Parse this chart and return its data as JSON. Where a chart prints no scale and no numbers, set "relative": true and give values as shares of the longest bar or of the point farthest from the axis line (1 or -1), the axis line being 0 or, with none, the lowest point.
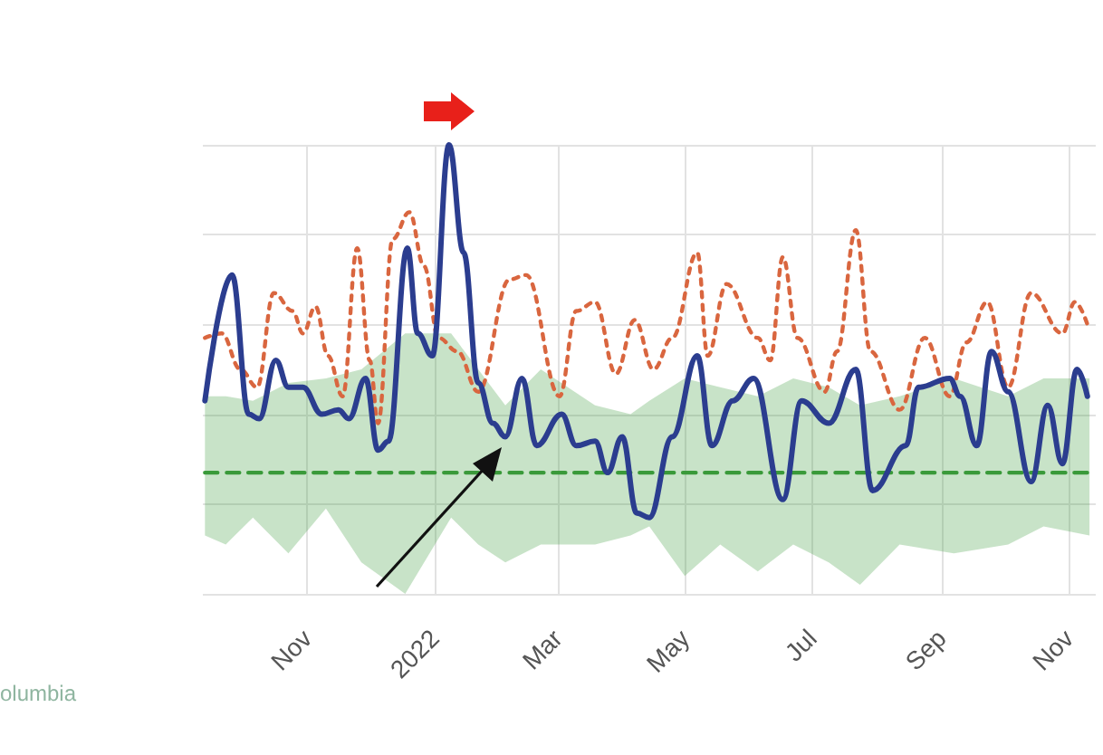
{
  "chart_data": {
    "type": "line",
    "relative": true,
    "grid": true,
    "marker": "none",
    "xlim": [
      "2021-09-12",
      "2022-11-14"
    ],
    "xticks": [
      {
        "value": "2021-11-01",
        "label": "Nov"
      },
      {
        "value": "2022-01-01",
        "label": "2022"
      },
      {
        "value": "2022-03-01",
        "label": "Mar"
      },
      {
        "value": "2022-05-01",
        "label": "May"
      },
      {
        "value": "2022-07-01",
        "label": "Jul"
      },
      {
        "value": "2022-09-01",
        "label": "Sep"
      },
      {
        "value": "2022-11-01",
        "label": "Nov"
      }
    ],
    "annotations": [
      "olumbia"
    ],
    "series": [
      {
        "color": "#3a9a3a",
        "line_style": "dashed",
        "x": [
          "2021-09-13",
          "2021-09-23",
          "2021-10-06",
          "2021-10-23",
          "2021-11-10",
          "2021-11-27",
          "2021-12-18",
          "2022-01-09",
          "2022-01-22",
          "2022-02-04",
          "2022-02-21",
          "2022-03-19",
          "2022-04-05",
          "2022-04-14",
          "2022-05-01",
          "2022-05-18",
          "2022-06-05",
          "2022-06-22",
          "2022-07-09",
          "2022-07-24",
          "2022-08-12",
          "2022-09-07",
          "2022-10-03",
          "2022-10-20",
          "2022-11-11"
        ],
        "values": [
          0.27,
          0.27,
          0.27,
          0.27,
          0.27,
          0.27,
          0.27,
          0.27,
          0.27,
          0.27,
          0.27,
          0.27,
          0.27,
          0.27,
          0.27,
          0.27,
          0.27,
          0.27,
          0.27,
          0.27,
          0.27,
          0.27,
          0.27,
          0.27,
          0.27
        ],
        "upper": [
          0.44,
          0.44,
          0.43,
          0.47,
          0.48,
          0.5,
          0.58,
          0.58,
          0.5,
          0.42,
          0.5,
          0.42,
          0.4,
          0.43,
          0.48,
          0.46,
          0.44,
          0.48,
          0.46,
          0.42,
          0.44,
          0.48,
          0.44,
          0.48,
          0.48
        ],
        "lower": [
          0.13,
          0.11,
          0.17,
          0.09,
          0.19,
          0.07,
          0,
          0.17,
          0.11,
          0.07,
          0.11,
          0.11,
          0.13,
          0.15,
          0.04,
          0.11,
          0.05,
          0.11,
          0.07,
          0.02,
          0.11,
          0.09,
          0.11,
          0.15,
          0.13
        ]
      },
      {
        "color": "#d9663f",
        "line_style": "dotted",
        "x": [
          "2021-09-13",
          "2021-09-21",
          "2021-09-30",
          "2021-10-08",
          "2021-10-16",
          "2021-10-25",
          "2021-10-30",
          "2021-11-05",
          "2021-11-11",
          "2021-11-18",
          "2021-11-25",
          "2021-12-01",
          "2021-12-05",
          "2021-12-12",
          "2021-12-20",
          "2021-12-27",
          "2022-01-03",
          "2022-01-12",
          "2022-01-22",
          "2022-02-06",
          "2022-02-14",
          "2022-03-02",
          "2022-03-10",
          "2022-03-19",
          "2022-03-29",
          "2022-04-07",
          "2022-04-16",
          "2022-04-25",
          "2022-05-07",
          "2022-05-12",
          "2022-05-21",
          "2022-06-05",
          "2022-06-11",
          "2022-06-17",
          "2022-06-24",
          "2022-07-07",
          "2022-07-13",
          "2022-07-22",
          "2022-07-29",
          "2022-08-12",
          "2022-08-24",
          "2022-09-05",
          "2022-09-13",
          "2022-09-23",
          "2022-10-03",
          "2022-10-14",
          "2022-10-29",
          "2022-11-04",
          "2022-11-10"
        ],
        "values": [
          0.57,
          0.58,
          0.5,
          0.46,
          0.67,
          0.63,
          0.58,
          0.64,
          0.53,
          0.44,
          0.77,
          0.52,
          0.38,
          0.79,
          0.85,
          0.73,
          0.57,
          0.54,
          0.45,
          0.7,
          0.71,
          0.44,
          0.63,
          0.65,
          0.49,
          0.61,
          0.5,
          0.57,
          0.76,
          0.53,
          0.69,
          0.57,
          0.52,
          0.75,
          0.57,
          0.45,
          0.54,
          0.81,
          0.54,
          0.41,
          0.57,
          0.44,
          0.56,
          0.65,
          0.46,
          0.67,
          0.58,
          0.65,
          0.6
        ]
      },
      {
        "color": "#2b3d8f",
        "line_style": "solid",
        "x": [
          "2021-09-13",
          "2021-09-26",
          "2021-10-04",
          "2021-10-09",
          "2021-10-17",
          "2021-10-23",
          "2021-10-30",
          "2021-11-08",
          "2021-11-16",
          "2021-11-21",
          "2021-11-29",
          "2021-12-05",
          "2021-12-10",
          "2021-12-19",
          "2021-12-24",
          "2021-12-31",
          "2022-01-08",
          "2022-01-15",
          "2022-01-22",
          "2022-01-29",
          "2022-02-04",
          "2022-02-12",
          "2022-02-19",
          "2022-03-03",
          "2022-03-10",
          "2022-03-19",
          "2022-03-25",
          "2022-04-01",
          "2022-04-08",
          "2022-04-14",
          "2022-04-25",
          "2022-05-07",
          "2022-05-14",
          "2022-05-24",
          "2022-06-03",
          "2022-06-17",
          "2022-06-26",
          "2022-07-09",
          "2022-07-22",
          "2022-07-30",
          "2022-08-15",
          "2022-08-21",
          "2022-09-05",
          "2022-09-10",
          "2022-09-18",
          "2022-09-25",
          "2022-10-03",
          "2022-10-14",
          "2022-10-22",
          "2022-10-29",
          "2022-11-05",
          "2022-11-10"
        ],
        "values": [
          0.43,
          0.71,
          0.4,
          0.39,
          0.52,
          0.46,
          0.46,
          0.4,
          0.41,
          0.39,
          0.48,
          0.32,
          0.34,
          0.77,
          0.58,
          0.53,
          1,
          0.76,
          0.47,
          0.38,
          0.35,
          0.48,
          0.33,
          0.4,
          0.33,
          0.34,
          0.27,
          0.35,
          0.18,
          0.17,
          0.35,
          0.53,
          0.33,
          0.43,
          0.48,
          0.21,
          0.43,
          0.38,
          0.5,
          0.23,
          0.33,
          0.46,
          0.48,
          0.44,
          0.33,
          0.54,
          0.45,
          0.25,
          0.42,
          0.29,
          0.5,
          0.44
        ]
      }
    ]
  }
}
